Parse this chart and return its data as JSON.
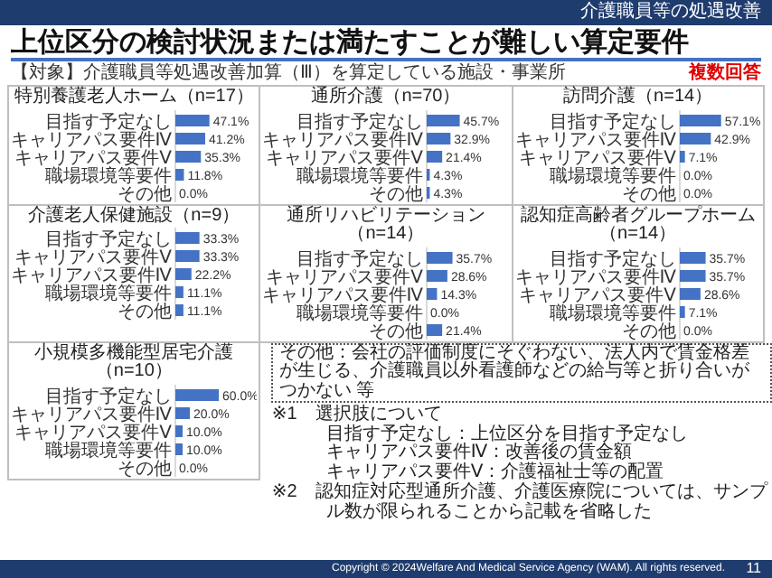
{
  "chart_data": [
    {
      "type": "other",
      "title": "上位区分の検討状況または満たすことが難しい算定要件",
      "subtitle": "【対象】介護職員等処遇改善加算（Ⅲ）を算定している施設・事業所",
      "annotations": [
        "介護職員等の処遇改善",
        "複数回答",
        "その他：会社の評価制度にそぐわない、法人内で賃金格差が生じる、介護職員以外看護師などの給与等と折り合いがつかない 等",
        "※1　選択肢について",
        "目指す予定なし：上位区分を目指す予定なし",
        "キャリアパス要件Ⅳ：改善後の賃金額",
        "キャリアパス要件Ⅴ：介護福祉士等の配置",
        "※2　認知症対応型通所介護、介護医療院については、サンプル数が限られることから記載を省略した",
        "Copyright © 2024Welfare And Medical Service Agency (WAM). All rights reserved.",
        "11"
      ]
    },
    {
      "type": "bar",
      "orientation": "horizontal",
      "title": "特別養護老人ホーム（n=17）",
      "categories": [
        "目指す予定なし",
        "キャリアパス要件Ⅳ",
        "キャリアパス要件Ⅴ",
        "職場環境等要件",
        "その他"
      ],
      "values": [
        47.1,
        41.2,
        35.3,
        11.8,
        0.0
      ],
      "value_labels": [
        "47.1%",
        "41.2%",
        "35.3%",
        "11.8%",
        "0.0%"
      ],
      "color": "#4472c4"
    },
    {
      "type": "bar",
      "orientation": "horizontal",
      "title": "通所介護（n=70）",
      "categories": [
        "目指す予定なし",
        "キャリアパス要件Ⅳ",
        "キャリアパス要件Ⅴ",
        "職場環境等要件",
        "その他"
      ],
      "values": [
        45.7,
        32.9,
        21.4,
        4.3,
        4.3
      ],
      "value_labels": [
        "45.7%",
        "32.9%",
        "21.4%",
        "4.3%",
        "4.3%"
      ],
      "color": "#4472c4"
    },
    {
      "type": "bar",
      "orientation": "horizontal",
      "title": "訪問介護（n=14）",
      "categories": [
        "目指す予定なし",
        "キャリアパス要件Ⅳ",
        "キャリアパス要件Ⅴ",
        "職場環境等要件",
        "その他"
      ],
      "values": [
        57.1,
        42.9,
        7.1,
        0.0,
        0.0
      ],
      "value_labels": [
        "57.1%",
        "42.9%",
        "7.1%",
        "0.0%",
        "0.0%"
      ],
      "color": "#4472c4"
    },
    {
      "type": "bar",
      "orientation": "horizontal",
      "title": "介護老人保健施設（n=9）",
      "categories": [
        "目指す予定なし",
        "キャリアパス要件Ⅴ",
        "キャリアパス要件Ⅳ",
        "職場環境等要件",
        "その他"
      ],
      "values": [
        33.3,
        33.3,
        22.2,
        11.1,
        11.1
      ],
      "value_labels": [
        "33.3%",
        "33.3%",
        "22.2%",
        "11.1%",
        "11.1%"
      ],
      "color": "#4472c4"
    },
    {
      "type": "bar",
      "orientation": "horizontal",
      "title": "通所リハビリテーション（n=14）",
      "categories": [
        "目指す予定なし",
        "キャリアパス要件Ⅴ",
        "キャリアパス要件Ⅳ",
        "職場環境等要件",
        "その他"
      ],
      "values": [
        35.7,
        28.6,
        14.3,
        0.0,
        21.4
      ],
      "value_labels": [
        "35.7%",
        "28.6%",
        "14.3%",
        "0.0%",
        "21.4%"
      ],
      "color": "#4472c4"
    },
    {
      "type": "bar",
      "orientation": "horizontal",
      "title": "認知症高齢者グループホーム（n=14）",
      "categories": [
        "目指す予定なし",
        "キャリアパス要件Ⅳ",
        "キャリアパス要件Ⅴ",
        "職場環境等要件",
        "その他"
      ],
      "values": [
        35.7,
        35.7,
        28.6,
        7.1,
        0.0
      ],
      "value_labels": [
        "35.7%",
        "35.7%",
        "28.6%",
        "7.1%",
        "0.0%"
      ],
      "color": "#4472c4"
    },
    {
      "type": "bar",
      "orientation": "horizontal",
      "title": "小規模多機能型居宅介護（n=10）",
      "categories": [
        "目指す予定なし",
        "キャリアパス要件Ⅳ",
        "キャリアパス要件Ⅴ",
        "職場環境等要件",
        "その他"
      ],
      "values": [
        60.0,
        20.0,
        10.0,
        10.0,
        0.0
      ],
      "value_labels": [
        "60.0%",
        "20.0%",
        "10.0%",
        "10.0%",
        "0.0%"
      ],
      "color": "#4472c4"
    }
  ]
}
